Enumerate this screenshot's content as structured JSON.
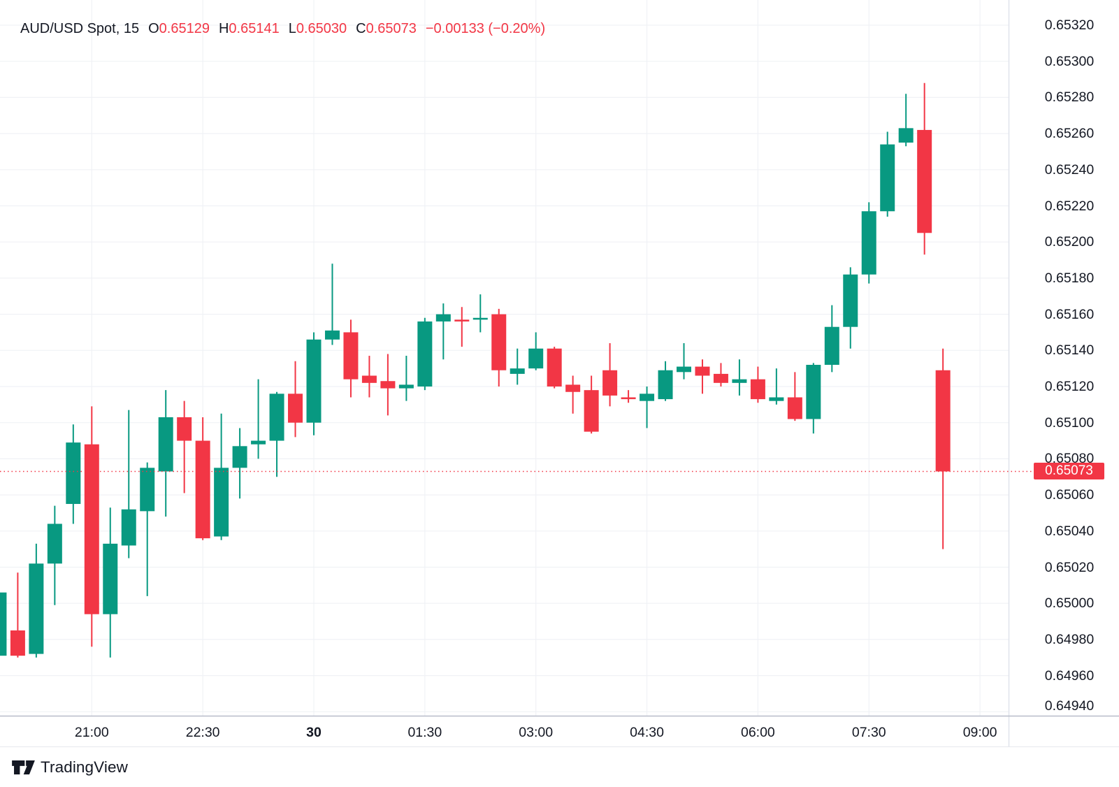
{
  "header": {
    "symbol_title": "AUD/USD Spot, 15",
    "ohlc": {
      "open_label": "O",
      "open": "0.65129",
      "high_label": "H",
      "high": "0.65141",
      "low_label": "L",
      "low": "0.65030",
      "close_label": "C",
      "close": "0.65073",
      "change": "−0.00133 (−0.20%)"
    }
  },
  "colors": {
    "up": "#089981",
    "down": "#F23645",
    "text": "#131722",
    "grid": "#F0F2F6",
    "axis_line": "#E0E3EB",
    "pane_separator": "#B8BCC9",
    "badge_bg": "#F23645",
    "badge_text": "#FFFFFF"
  },
  "chart_data": {
    "type": "candlestick",
    "title": "AUD/USD Spot, 15",
    "symbol": "AUD/USD Spot",
    "interval_minutes": 15,
    "grid": true,
    "legend_position": "top-left",
    "columns": [
      "time",
      "open",
      "high",
      "low",
      "close"
    ],
    "candles": [
      [
        "19:45",
        0.64971,
        0.65006,
        0.64971,
        0.65006
      ],
      [
        "20:00",
        0.64985,
        0.65017,
        0.6497,
        0.64971
      ],
      [
        "20:15",
        0.64972,
        0.65033,
        0.6497,
        0.65022
      ],
      [
        "20:30",
        0.65022,
        0.65054,
        0.64999,
        0.65044
      ],
      [
        "20:45",
        0.65055,
        0.65099,
        0.65044,
        0.65089
      ],
      [
        "21:00",
        0.65088,
        0.65109,
        0.64976,
        0.64994
      ],
      [
        "21:15",
        0.64994,
        0.65053,
        0.6497,
        0.65033
      ],
      [
        "21:30",
        0.65032,
        0.65107,
        0.65025,
        0.65052
      ],
      [
        "21:45",
        0.65051,
        0.65078,
        0.65004,
        0.65075
      ],
      [
        "22:00",
        0.65073,
        0.65118,
        0.65048,
        0.65103
      ],
      [
        "22:15",
        0.65103,
        0.65112,
        0.65061,
        0.6509
      ],
      [
        "22:30",
        0.6509,
        0.65103,
        0.65035,
        0.65036
      ],
      [
        "22:45",
        0.65037,
        0.65105,
        0.65035,
        0.65075
      ],
      [
        "23:00",
        0.65075,
        0.65097,
        0.65058,
        0.65087
      ],
      [
        "23:15",
        0.65088,
        0.65124,
        0.6508,
        0.6509
      ],
      [
        "23:30",
        0.6509,
        0.65117,
        0.6507,
        0.65116
      ],
      [
        "23:45",
        0.65116,
        0.65134,
        0.65092,
        0.651
      ],
      [
        "00:00",
        0.651,
        0.6515,
        0.65093,
        0.65146
      ],
      [
        "00:15",
        0.65146,
        0.65188,
        0.65143,
        0.65151
      ],
      [
        "00:30",
        0.6515,
        0.65157,
        0.65114,
        0.65124
      ],
      [
        "00:45",
        0.65126,
        0.65137,
        0.65114,
        0.65122
      ],
      [
        "01:00",
        0.65123,
        0.65138,
        0.65104,
        0.65119
      ],
      [
        "01:15",
        0.65119,
        0.65137,
        0.65112,
        0.65121
      ],
      [
        "01:30",
        0.6512,
        0.65158,
        0.65118,
        0.65156
      ],
      [
        "01:45",
        0.65156,
        0.65166,
        0.65135,
        0.6516
      ],
      [
        "02:00",
        0.65157,
        0.65164,
        0.65142,
        0.65156
      ],
      [
        "02:15",
        0.65157,
        0.65171,
        0.6515,
        0.65158
      ],
      [
        "02:30",
        0.6516,
        0.65163,
        0.6512,
        0.65129
      ],
      [
        "02:45",
        0.65127,
        0.65141,
        0.65121,
        0.6513
      ],
      [
        "03:00",
        0.6513,
        0.6515,
        0.65129,
        0.65141
      ],
      [
        "03:15",
        0.65141,
        0.65142,
        0.65119,
        0.6512
      ],
      [
        "03:30",
        0.65121,
        0.65126,
        0.65105,
        0.65117
      ],
      [
        "03:45",
        0.65118,
        0.65126,
        0.65094,
        0.65095
      ],
      [
        "04:00",
        0.65129,
        0.65144,
        0.65109,
        0.65115
      ],
      [
        "04:15",
        0.65114,
        0.65118,
        0.65111,
        0.65113
      ],
      [
        "04:30",
        0.65112,
        0.6512,
        0.65097,
        0.65116
      ],
      [
        "04:45",
        0.65113,
        0.65134,
        0.65112,
        0.65129
      ],
      [
        "05:00",
        0.65128,
        0.65144,
        0.65124,
        0.65131
      ],
      [
        "05:15",
        0.65131,
        0.65135,
        0.65116,
        0.65126
      ],
      [
        "05:30",
        0.65127,
        0.65133,
        0.6512,
        0.65122
      ],
      [
        "05:45",
        0.65122,
        0.65135,
        0.65115,
        0.65124
      ],
      [
        "06:00",
        0.65124,
        0.65131,
        0.65111,
        0.65113
      ],
      [
        "06:15",
        0.65112,
        0.6513,
        0.6511,
        0.65114
      ],
      [
        "06:30",
        0.65114,
        0.65128,
        0.65101,
        0.65102
      ],
      [
        "06:45",
        0.65102,
        0.65133,
        0.65094,
        0.65132
      ],
      [
        "07:00",
        0.65132,
        0.65165,
        0.65128,
        0.65153
      ],
      [
        "07:15",
        0.65153,
        0.65186,
        0.65141,
        0.65182
      ],
      [
        "07:30",
        0.65182,
        0.65222,
        0.65177,
        0.65217
      ],
      [
        "07:45",
        0.65217,
        0.65261,
        0.65214,
        0.65254
      ],
      [
        "08:00",
        0.65255,
        0.65282,
        0.65253,
        0.65263
      ],
      [
        "08:15",
        0.65262,
        0.65288,
        0.65193,
        0.65205
      ],
      [
        "08:30",
        0.65129,
        0.65141,
        0.6503,
        0.65073
      ]
    ],
    "y_axis": {
      "side": "right",
      "min": 0.6494,
      "max": 0.6532,
      "step": 0.0002,
      "labels": [
        "0.65320",
        "0.65300",
        "0.65280",
        "0.65260",
        "0.65240",
        "0.65220",
        "0.65200",
        "0.65180",
        "0.65160",
        "0.65140",
        "0.65120",
        "0.65100",
        "0.65080",
        "0.65060",
        "0.65040",
        "0.65020",
        "0.65000",
        "0.64980",
        "0.64960",
        "0.64940"
      ]
    },
    "x_axis": {
      "bar_minutes": 15,
      "ticks": [
        {
          "label": "21:00",
          "i": 4
        },
        {
          "label": "22:30",
          "i": 10
        },
        {
          "label": "30",
          "i": 16,
          "bold": true
        },
        {
          "label": "01:30",
          "i": 22
        },
        {
          "label": "03:00",
          "i": 28
        },
        {
          "label": "04:30",
          "i": 34
        },
        {
          "label": "06:00",
          "i": 40
        },
        {
          "label": "07:30",
          "i": 46
        },
        {
          "label": "09:00",
          "i": 52
        }
      ]
    },
    "last_price": {
      "value": "0.65073",
      "price": 0.65073,
      "direction": "down"
    }
  },
  "footer": {
    "logo_text": "TradingView"
  }
}
